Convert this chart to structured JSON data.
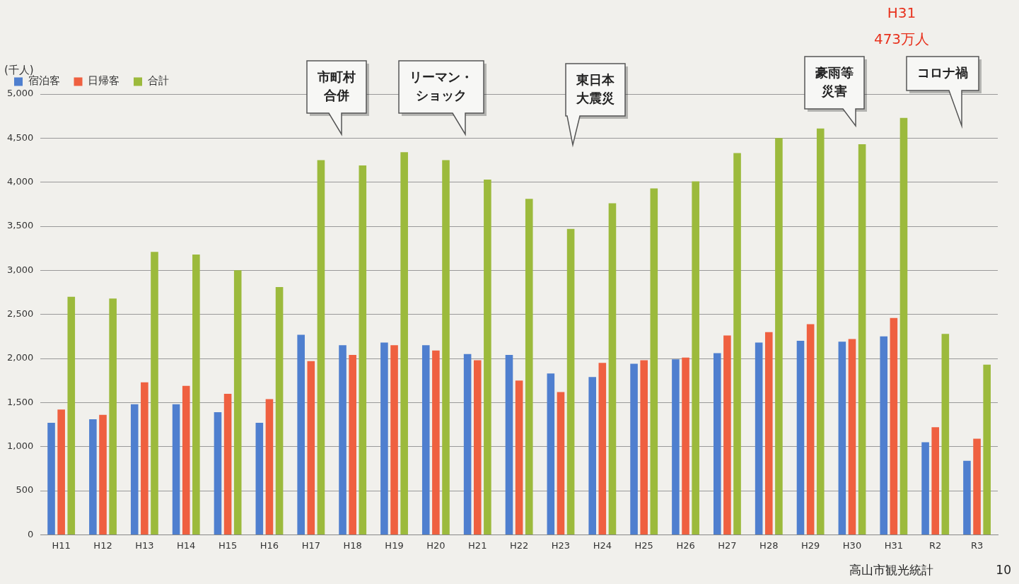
{
  "chart_data": {
    "type": "bar",
    "ylabel": "(千人)",
    "categories": [
      "H11",
      "H12",
      "H13",
      "H14",
      "H15",
      "H16",
      "H17",
      "H18",
      "H19",
      "H20",
      "H21",
      "H22",
      "H23",
      "H24",
      "H25",
      "H26",
      "H27",
      "H28",
      "H29",
      "H30",
      "H31",
      "R2",
      "R3"
    ],
    "series": [
      {
        "name": "宿泊客",
        "color": "#4f7fcf",
        "values": [
          1270,
          1310,
          1480,
          1480,
          1390,
          1270,
          2270,
          2150,
          2180,
          2150,
          2050,
          2040,
          1830,
          1790,
          1940,
          1990,
          2060,
          2180,
          2200,
          2190,
          2250,
          1050,
          840
        ]
      },
      {
        "name": "日帰客",
        "color": "#ef6040",
        "values": [
          1420,
          1360,
          1730,
          1690,
          1600,
          1540,
          1970,
          2040,
          2150,
          2090,
          1980,
          1750,
          1620,
          1950,
          1980,
          2010,
          2260,
          2300,
          2390,
          2220,
          2460,
          1220,
          1090
        ]
      },
      {
        "name": "合計",
        "color": "#9cba3c",
        "values": [
          2700,
          2680,
          3210,
          3180,
          3000,
          2810,
          4250,
          4190,
          4340,
          4250,
          4030,
          3810,
          3470,
          3760,
          3930,
          4010,
          4330,
          4500,
          4610,
          4430,
          4730,
          2280,
          1930
        ]
      }
    ],
    "ylim": [
      0,
      5000
    ],
    "yticks": [
      0,
      500,
      {
        "value": 1000,
        "label": "1,000"
      },
      {
        "value": 1500,
        "label": "1,500"
      },
      {
        "value": 2000,
        "label": "2,000"
      },
      {
        "value": 2500,
        "label": "2,500"
      },
      {
        "value": 3000,
        "label": "3,000"
      },
      {
        "value": 3500,
        "label": "3,500"
      },
      {
        "value": 4000,
        "label": "4,000"
      },
      {
        "value": 4500,
        "label": "4,500"
      },
      {
        "value": 5000,
        "label": "5,000"
      }
    ],
    "grid": "y",
    "legend": "top left",
    "annotations": [
      "市町村合併",
      "リーマン・ショック",
      "東日本大震災",
      "豪雨等災害",
      "コロナ禍",
      "H31 473万人",
      "高山市観光統計",
      "10"
    ]
  }
}
